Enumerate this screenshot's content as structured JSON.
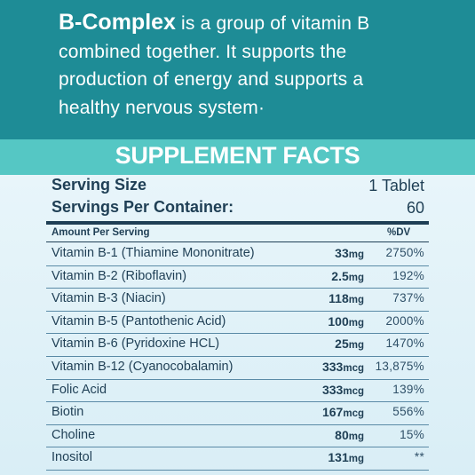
{
  "intro": {
    "brand": "B-Complex",
    "line1_rest": " is a group of vitamin B",
    "line2": "combined together. It supports the",
    "line3": "production of energy and supports a",
    "line4": "healthy nervous system·"
  },
  "heading": "SUPPLEMENT FACTS",
  "serving": {
    "size_label": "Serving Size",
    "size_value": "1 Tablet",
    "per_container_label": "Servings Per Container:",
    "per_container_value": "60"
  },
  "columns": {
    "amount": "Amount Per Serving",
    "dv": "%DV"
  },
  "rows": [
    {
      "name": "Vitamin B-1 (Thiamine Mononitrate)",
      "amount": "33",
      "unit": "mg",
      "dv": "2750%"
    },
    {
      "name": "Vitamin B-2 (Riboflavin)",
      "amount": "2.5",
      "unit": "mg",
      "dv": "192%"
    },
    {
      "name": "Vitamin B-3 (Niacin)",
      "amount": "118",
      "unit": "mg",
      "dv": "737%"
    },
    {
      "name": "Vitamin B-5 (Pantothenic Acid)",
      "amount": "100",
      "unit": "mg",
      "dv": "2000%"
    },
    {
      "name": "Vitamin B-6 (Pyridoxine HCL)",
      "amount": "25",
      "unit": "mg",
      "dv": "1470%"
    },
    {
      "name": "Vitamin B-12 (Cyanocobalamin)",
      "amount": "333",
      "unit": "mcg",
      "dv": "13,875%"
    },
    {
      "name": "Folic Acid",
      "amount": "333",
      "unit": "mcg",
      "dv": "139%"
    },
    {
      "name": "Biotin",
      "amount": "167",
      "unit": "mcg",
      "dv": "556%"
    },
    {
      "name": "Choline",
      "amount": "80",
      "unit": "mg",
      "dv": "15%"
    },
    {
      "name": "Inositol",
      "amount": "131",
      "unit": "mg",
      "dv": "**"
    }
  ],
  "colors": {
    "top_band": "#1e8c96",
    "heading_band": "#55c7c4",
    "text": "#1f3f55"
  }
}
